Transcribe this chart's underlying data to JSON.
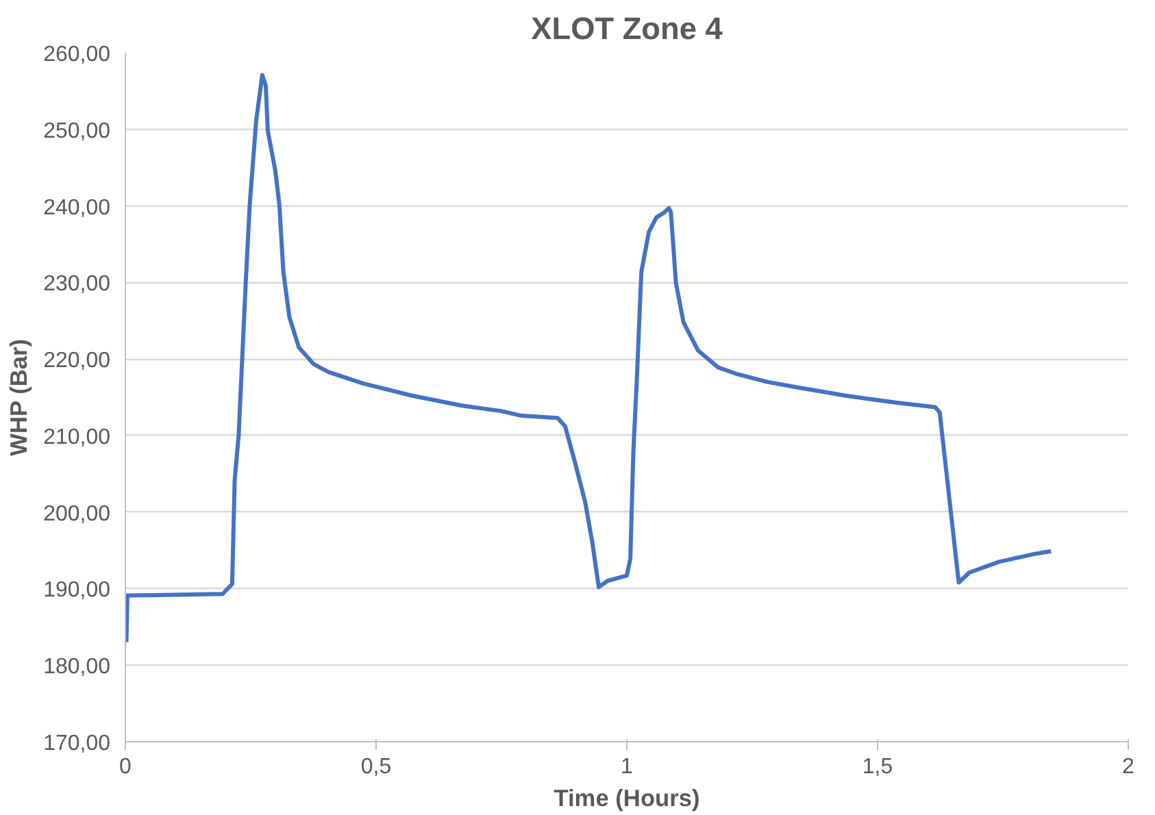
{
  "chart_data": {
    "type": "line",
    "title": "XLOT Zone 4",
    "xlabel": "Time (Hours)",
    "ylabel": "WHP (Bar)",
    "xlim": [
      0,
      2
    ],
    "ylim": [
      170,
      260
    ],
    "xticks": [
      0,
      {
        "value": 0.5,
        "label": "0,5"
      },
      1,
      {
        "value": 1.5,
        "label": "1,5"
      },
      2
    ],
    "yticks": [
      {
        "value": 170,
        "label": "170,00"
      },
      {
        "value": 180,
        "label": "180,00"
      },
      {
        "value": 190,
        "label": "190,00"
      },
      {
        "value": 200,
        "label": "200,00"
      },
      {
        "value": 210,
        "label": "210,00"
      },
      {
        "value": 220,
        "label": "220,00"
      },
      {
        "value": 230,
        "label": "230,00"
      },
      {
        "value": 240,
        "label": "240,00"
      },
      {
        "value": 250,
        "label": "250,00"
      },
      {
        "value": 260,
        "label": "260,00"
      }
    ],
    "grid": "y",
    "marker": "none",
    "line_style": "solid",
    "series": [
      {
        "color": "#4472c4",
        "x": [
          0.002,
          0.004,
          0.194,
          0.213,
          0.218,
          0.226,
          0.24,
          0.248,
          0.261,
          0.273,
          0.28,
          0.284,
          0.299,
          0.307,
          0.315,
          0.327,
          0.346,
          0.376,
          0.405,
          0.474,
          0.572,
          0.671,
          0.749,
          0.789,
          0.862,
          0.877,
          0.897,
          0.917,
          0.931,
          0.944,
          0.961,
          1.0,
          1.007,
          1.013,
          1.02,
          1.029,
          1.044,
          1.059,
          1.074,
          1.084,
          1.088,
          1.098,
          1.113,
          1.142,
          1.182,
          1.221,
          1.28,
          1.339,
          1.437,
          1.536,
          1.615,
          1.624,
          1.639,
          1.654,
          1.662,
          1.683,
          1.742,
          1.811,
          1.846
        ],
        "values": [
          183.0,
          189.1,
          189.3,
          190.6,
          204.2,
          210.1,
          229.9,
          240.2,
          251.2,
          257.1,
          255.7,
          249.8,
          244.6,
          240.2,
          231.4,
          225.5,
          221.5,
          219.3,
          218.3,
          216.8,
          215.2,
          213.9,
          213.2,
          212.6,
          212.3,
          211.2,
          206.4,
          201.3,
          196.1,
          190.2,
          191.0,
          191.7,
          193.9,
          207.9,
          217.4,
          231.4,
          236.6,
          238.5,
          239.1,
          239.7,
          239.1,
          229.9,
          224.8,
          221.1,
          218.9,
          218.0,
          217.0,
          216.3,
          215.2,
          214.3,
          213.7,
          213.0,
          204.2,
          195.4,
          190.8,
          192.1,
          193.5,
          194.5,
          194.9
        ]
      }
    ]
  }
}
